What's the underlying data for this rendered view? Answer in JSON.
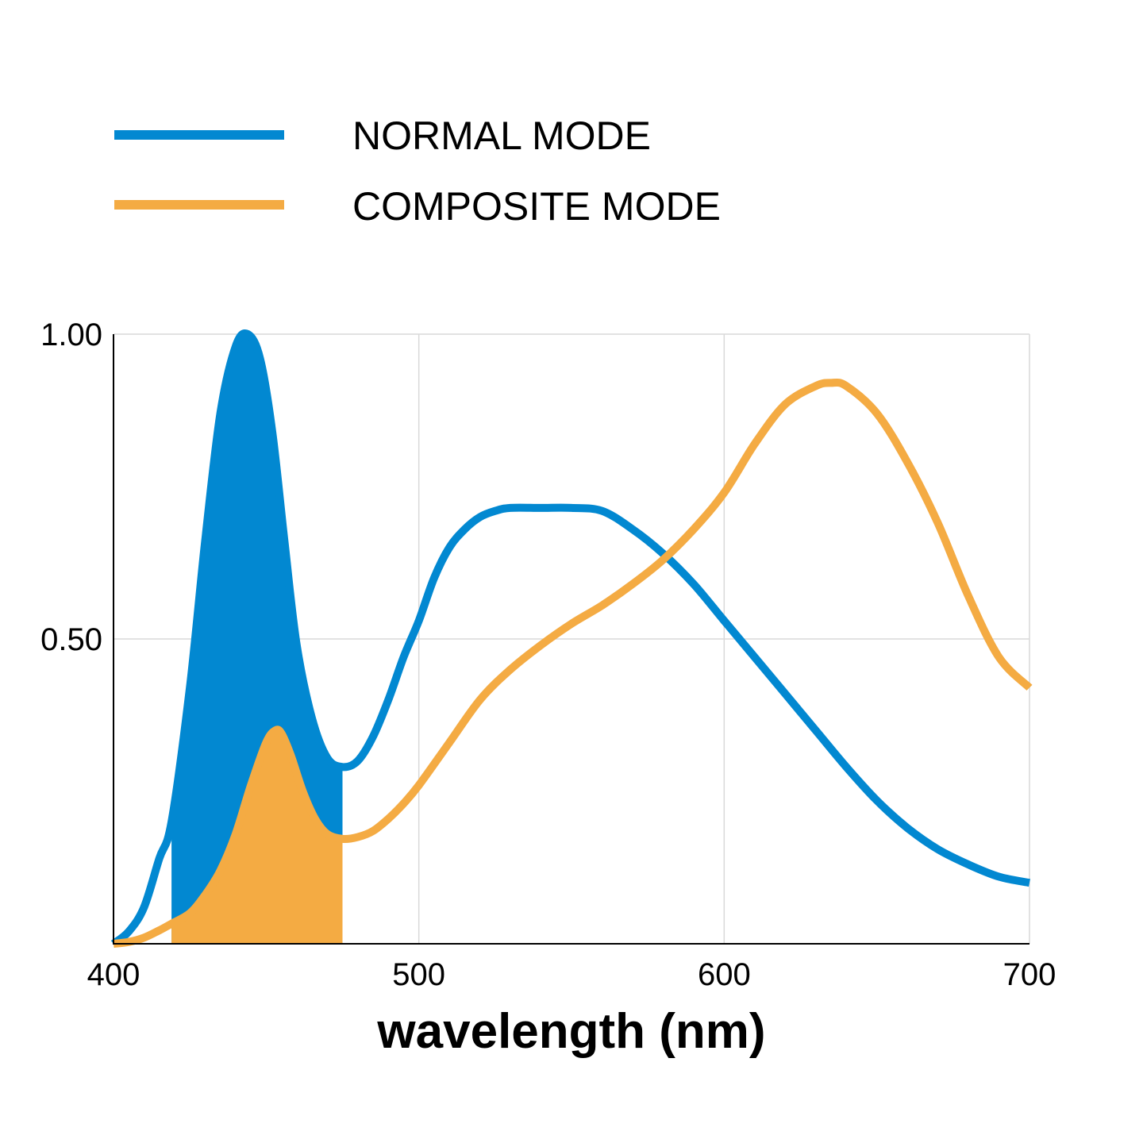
{
  "chart_data": {
    "type": "line",
    "xlabel": "wavelength (nm)",
    "ylabel": "",
    "xlim": [
      400,
      700
    ],
    "ylim": [
      0,
      1
    ],
    "x_ticks": [
      {
        "value": 400,
        "label": "400"
      },
      {
        "value": 500,
        "label": "500"
      },
      {
        "value": 600,
        "label": "600"
      },
      {
        "value": 700,
        "label": "700"
      }
    ],
    "y_ticks": [
      {
        "value": 0.5,
        "label": "0.50"
      },
      {
        "value": 1.0,
        "label": "1.00"
      }
    ],
    "grid": true,
    "legend_position": "top-left",
    "shaded_range": [
      419,
      475
    ],
    "series": [
      {
        "name": "NORMAL MODE",
        "color": "#0288d1",
        "x": [
          400,
          405,
          410,
          415,
          419,
          425,
          430,
          435,
          440,
          444,
          448,
          452,
          456,
          460,
          465,
          470,
          475,
          480,
          485,
          490,
          495,
          500,
          505,
          510,
          515,
          520,
          525,
          530,
          540,
          550,
          560,
          570,
          580,
          590,
          600,
          610,
          620,
          630,
          640,
          650,
          660,
          670,
          680,
          690,
          700
        ],
        "y": [
          0.0,
          0.02,
          0.06,
          0.14,
          0.2,
          0.42,
          0.66,
          0.87,
          0.98,
          1.0,
          0.96,
          0.84,
          0.66,
          0.49,
          0.37,
          0.305,
          0.29,
          0.3,
          0.34,
          0.4,
          0.47,
          0.53,
          0.6,
          0.65,
          0.68,
          0.7,
          0.71,
          0.715,
          0.715,
          0.715,
          0.71,
          0.68,
          0.64,
          0.59,
          0.53,
          0.47,
          0.41,
          0.35,
          0.29,
          0.235,
          0.19,
          0.155,
          0.13,
          0.11,
          0.1
        ]
      },
      {
        "name": "COMPOSITE MODE",
        "color": "#f4ab43",
        "x": [
          400,
          405,
          410,
          415,
          419,
          425,
          430,
          435,
          440,
          445,
          450,
          453,
          455,
          458,
          462,
          466,
          470,
          475,
          480,
          485,
          490,
          495,
          500,
          510,
          520,
          530,
          540,
          550,
          560,
          570,
          580,
          590,
          600,
          610,
          620,
          630,
          635,
          640,
          650,
          660,
          670,
          680,
          690,
          700
        ],
        "y": [
          0.0,
          0.003,
          0.01,
          0.022,
          0.033,
          0.05,
          0.08,
          0.12,
          0.18,
          0.26,
          0.33,
          0.35,
          0.345,
          0.31,
          0.25,
          0.205,
          0.18,
          0.172,
          0.175,
          0.185,
          0.205,
          0.23,
          0.26,
          0.33,
          0.4,
          0.45,
          0.49,
          0.525,
          0.555,
          0.59,
          0.63,
          0.68,
          0.74,
          0.82,
          0.885,
          0.915,
          0.92,
          0.915,
          0.87,
          0.79,
          0.69,
          0.57,
          0.47,
          0.42
        ]
      }
    ]
  }
}
